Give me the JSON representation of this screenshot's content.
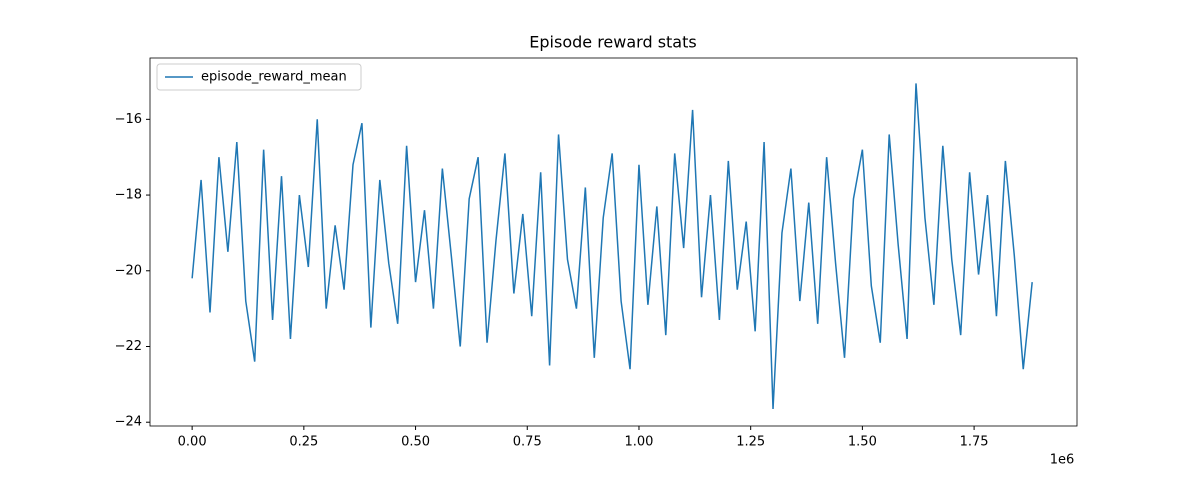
{
  "chart_data": {
    "type": "line",
    "title": "Episode reward stats",
    "x": [
      0,
      20000,
      40000,
      60000,
      80000,
      100000,
      120000,
      140000,
      160000,
      180000,
      200000,
      220000,
      240000,
      260000,
      280000,
      300000,
      320000,
      340000,
      360000,
      380000,
      400000,
      420000,
      440000,
      460000,
      480000,
      500000,
      520000,
      540000,
      560000,
      580000,
      600000,
      620000,
      640000,
      660000,
      680000,
      700000,
      720000,
      740000,
      760000,
      780000,
      800000,
      820000,
      840000,
      860000,
      880000,
      900000,
      920000,
      940000,
      960000,
      980000,
      1000000,
      1020000,
      1040000,
      1060000,
      1080000,
      1100000,
      1120000,
      1140000,
      1160000,
      1180000,
      1200000,
      1220000,
      1240000,
      1260000,
      1280000,
      1300000,
      1320000,
      1340000,
      1360000,
      1380000,
      1400000,
      1420000,
      1440000,
      1460000,
      1480000,
      1500000,
      1520000,
      1540000,
      1560000,
      1580000,
      1600000,
      1620000,
      1640000,
      1660000,
      1680000,
      1700000,
      1720000,
      1740000,
      1760000,
      1780000,
      1800000,
      1820000,
      1840000,
      1860000,
      1880000
    ],
    "series": [
      {
        "name": "episode_reward_mean",
        "color": "#1f77b4",
        "values": [
          -20.2,
          -17.6,
          -21.1,
          -17.0,
          -19.5,
          -16.6,
          -20.8,
          -22.4,
          -16.8,
          -21.3,
          -17.5,
          -21.8,
          -18.0,
          -19.9,
          -16.0,
          -21.0,
          -18.8,
          -20.5,
          -17.2,
          -16.1,
          -21.5,
          -17.6,
          -19.8,
          -21.4,
          -16.7,
          -20.3,
          -18.4,
          -21.0,
          -17.3,
          -19.6,
          -22.0,
          -18.1,
          -17.0,
          -21.9,
          -19.2,
          -16.9,
          -20.6,
          -18.5,
          -21.2,
          -17.4,
          -22.5,
          -16.4,
          -19.7,
          -21.0,
          -17.8,
          -22.3,
          -18.6,
          -16.9,
          -20.8,
          -22.6,
          -17.2,
          -20.9,
          -18.3,
          -21.7,
          -16.9,
          -19.4,
          -15.75,
          -20.7,
          -18.0,
          -21.3,
          -17.1,
          -20.5,
          -18.7,
          -21.6,
          -16.6,
          -23.65,
          -19.0,
          -17.3,
          -20.8,
          -18.2,
          -21.4,
          -17.0,
          -19.8,
          -22.3,
          -18.1,
          -16.8,
          -20.4,
          -21.9,
          -16.4,
          -19.3,
          -21.8,
          -15.05,
          -18.6,
          -20.9,
          -16.7,
          -19.7,
          -21.7,
          -17.4,
          -20.1,
          -18.0,
          -21.2,
          -17.1,
          -19.6,
          -22.6,
          -20.3
        ]
      }
    ],
    "xlim": [
      -94300,
      1980300
    ],
    "ylim": [
      -24.1,
      -14.38
    ],
    "xticks": [
      {
        "value": 0,
        "label": "0.00"
      },
      {
        "value": 250000,
        "label": "0.25"
      },
      {
        "value": 500000,
        "label": "0.50"
      },
      {
        "value": 750000,
        "label": "0.75"
      },
      {
        "value": 1000000,
        "label": "1.00"
      },
      {
        "value": 1250000,
        "label": "1.25"
      },
      {
        "value": 1500000,
        "label": "1.50"
      },
      {
        "value": 1750000,
        "label": "1.75"
      }
    ],
    "x_offset_label": "1e6",
    "yticks": [
      {
        "value": -24,
        "label": "−24"
      },
      {
        "value": -22,
        "label": "−22"
      },
      {
        "value": -20,
        "label": "−20"
      },
      {
        "value": -18,
        "label": "−18"
      },
      {
        "value": -16,
        "label": "−16"
      }
    ],
    "legend": "upper left",
    "grid": false
  }
}
